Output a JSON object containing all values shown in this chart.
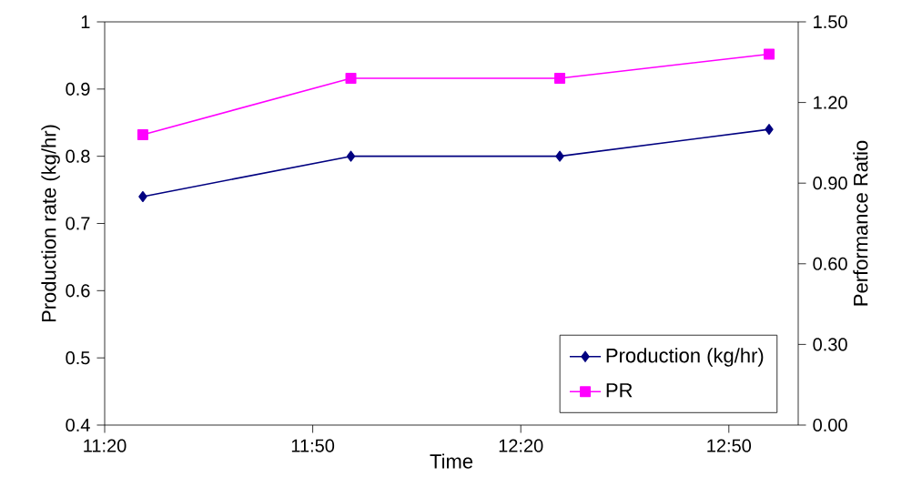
{
  "chart_data": {
    "type": "line",
    "xlabel": "Time",
    "ylabel": "Production rate (kg/hr)",
    "y2label": "Performance Ratio",
    "x": [
      11.425,
      11.925,
      12.427,
      12.93
    ],
    "xlim": [
      11.3333,
      13.0
    ],
    "xticks": [
      {
        "value": 11.3333,
        "label": "11:20"
      },
      {
        "value": 11.8333,
        "label": "11:50"
      },
      {
        "value": 12.3333,
        "label": "12:20"
      },
      {
        "value": 12.8333,
        "label": "12:50"
      }
    ],
    "ylim": [
      0.4,
      1
    ],
    "yticks": [
      0.4,
      0.5,
      0.6,
      0.7,
      0.8,
      0.9,
      1
    ],
    "y2lim": [
      0,
      1.5
    ],
    "y2ticks": [
      {
        "value": 0,
        "label": "0.00"
      },
      {
        "value": 0.3,
        "label": "0.30"
      },
      {
        "value": 0.6,
        "label": "0.60"
      },
      {
        "value": 0.9,
        "label": "0.90"
      },
      {
        "value": 1.2,
        "label": "1.20"
      },
      {
        "value": 1.5,
        "label": "1.50"
      }
    ],
    "legend": "bottom right",
    "series": [
      {
        "name": "Production (kg/hr)",
        "color": "#000080",
        "marker": "diamond",
        "values": [
          0.74,
          0.8,
          0.8,
          0.84
        ]
      },
      {
        "name": "PR",
        "color": "#ff00ff",
        "marker": "square",
        "axis": "y2",
        "values": [
          1.08,
          1.29,
          1.29,
          1.38
        ]
      }
    ]
  }
}
